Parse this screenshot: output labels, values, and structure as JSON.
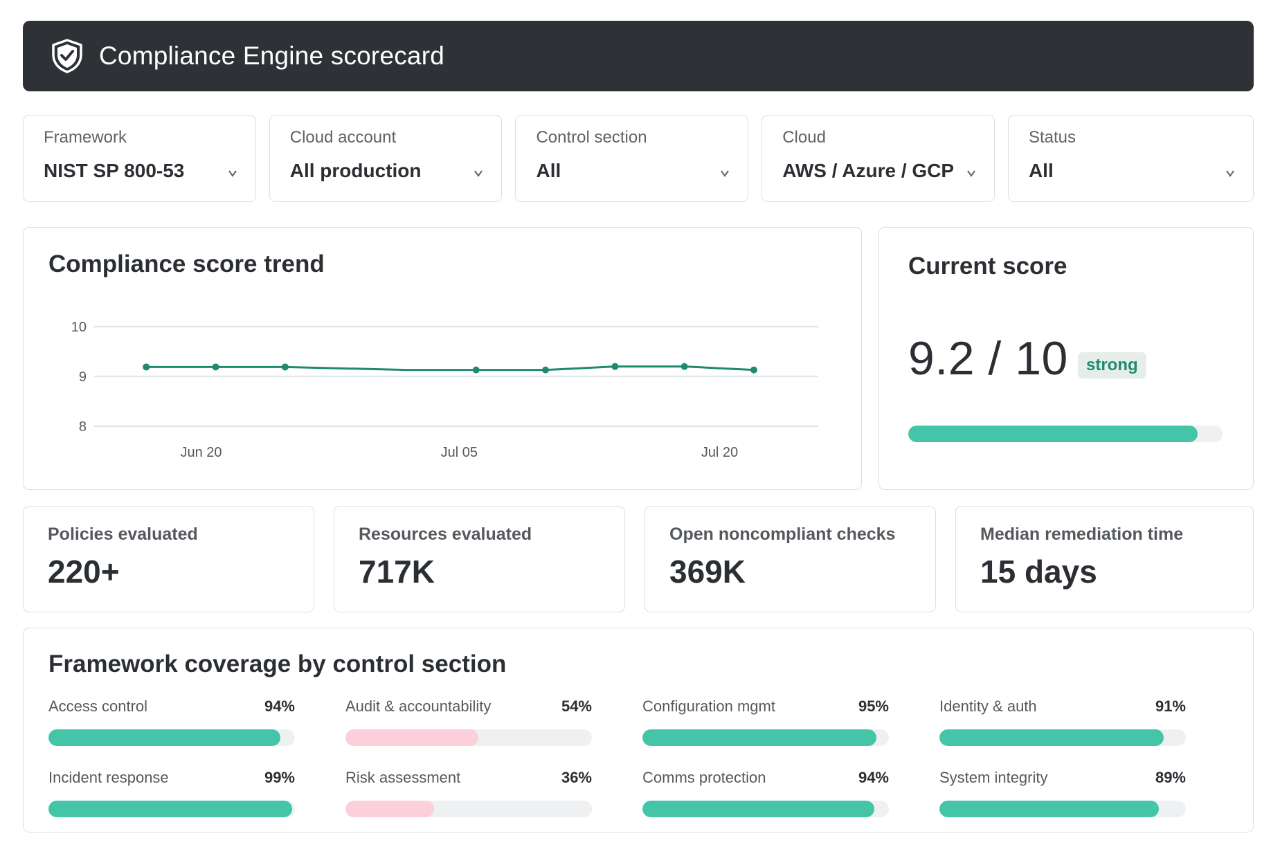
{
  "header": {
    "title": "Compliance Engine scorecard",
    "icon": "shield-check-icon"
  },
  "filters": [
    {
      "label": "Framework",
      "value": "NIST SP 800-53"
    },
    {
      "label": "Cloud account",
      "value": "All production"
    },
    {
      "label": "Control section",
      "value": "All"
    },
    {
      "label": "Cloud",
      "value": "AWS / Azure / GCP"
    },
    {
      "label": "Status",
      "value": "All"
    }
  ],
  "trend": {
    "title": "Compliance score trend",
    "chart_data": {
      "type": "line",
      "title": "Compliance score trend",
      "x": [
        "2024-06-17",
        "2024-06-21",
        "2024-06-25",
        "2024-07-02",
        "2024-07-06",
        "2024-07-10",
        "2024-07-14",
        "2024-07-18",
        "2024-07-22"
      ],
      "x_tick_labels": [
        "Jun 20",
        "Jul 05",
        "Jul 20"
      ],
      "series": [
        {
          "values": [
            9.19,
            9.19,
            9.19,
            9.13,
            9.13,
            9.13,
            9.2,
            9.2,
            9.13
          ],
          "markers": [
            true,
            true,
            true,
            false,
            true,
            true,
            true,
            true,
            true
          ]
        }
      ],
      "y_ticks": [
        8,
        9,
        10
      ],
      "ylim": [
        8,
        10
      ],
      "grid": true,
      "color": "#1f8a70"
    }
  },
  "score": {
    "title": "Current score",
    "value": "9.2 / 10",
    "badge": "strong",
    "fraction": 0.92,
    "fill_color": "#44c5a8"
  },
  "stats": [
    {
      "label": "Policies evaluated",
      "value": "220+"
    },
    {
      "label": "Resources evaluated",
      "value": "717K"
    },
    {
      "label": "Open noncompliant checks",
      "value": "369K"
    },
    {
      "label": "Median remediation time",
      "value": "15 days"
    }
  ],
  "coverage": {
    "title": "Framework coverage by control section",
    "items": [
      {
        "label": "Access control",
        "pct_text": "94%",
        "pct": 94,
        "color": "#44c5a8"
      },
      {
        "label": "Audit & accountability",
        "pct_text": "54%",
        "pct": 54,
        "color": "#fcd0da"
      },
      {
        "label": "Configuration mgmt",
        "pct_text": "95%",
        "pct": 95,
        "color": "#44c5a8"
      },
      {
        "label": "Identity & auth",
        "pct_text": "91%",
        "pct": 91,
        "color": "#44c5a8"
      },
      {
        "label": "Incident response",
        "pct_text": "99%",
        "pct": 99,
        "color": "#44c5a8"
      },
      {
        "label": "Risk assessment",
        "pct_text": "36%",
        "pct": 36,
        "color": "#fcd0da"
      },
      {
        "label": "Comms protection",
        "pct_text": "94%",
        "pct": 94,
        "color": "#44c5a8"
      },
      {
        "label": "System integrity",
        "pct_text": "89%",
        "pct": 89,
        "color": "#44c5a8"
      }
    ]
  }
}
